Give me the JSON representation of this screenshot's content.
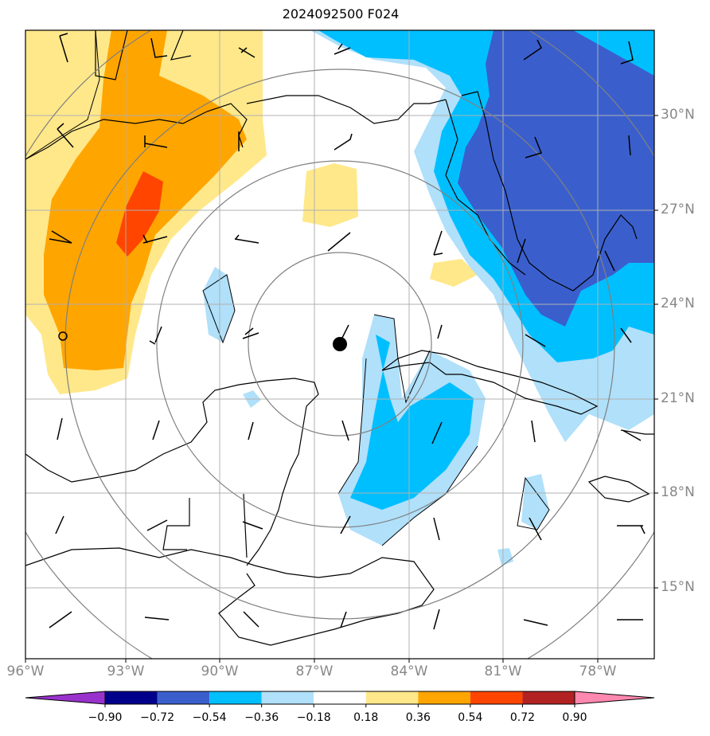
{
  "title": "2024092500 F024",
  "lon_labels": [
    "96°W",
    "93°W",
    "90°W",
    "87°W",
    "84°W",
    "81°W",
    "78°W"
  ],
  "lat_labels": [
    "30°N",
    "27°N",
    "24°N",
    "21°N",
    "18°N",
    "15°N"
  ],
  "colorbar": {
    "ticks": [
      "−0.90",
      "−0.72",
      "−0.54",
      "−0.36",
      "−0.18",
      "0.18",
      "0.36",
      "0.54",
      "0.72",
      "0.90"
    ],
    "colors": [
      "#9932cc",
      "#00008b",
      "#3a5fcd",
      "#00bfff",
      "#b0e0fa",
      "#ffffff",
      "#ffe88a",
      "#ffa500",
      "#ff4500",
      "#b22222",
      "#ff88b0"
    ]
  },
  "center_marker": {
    "lon": -86.2,
    "lat": 22.7
  },
  "small_circle_marker": {
    "lon": -95.0,
    "lat": 22.9
  },
  "colors": {
    "coast": "#000000",
    "grid": "#b0b0b0",
    "range_rings": "#808080",
    "pos1": "#ffe88a",
    "pos2": "#ffa500",
    "pos3": "#ff4500",
    "neg1": "#b0e0fa",
    "neg2": "#00bfff",
    "neg3": "#3a5fcd"
  }
}
